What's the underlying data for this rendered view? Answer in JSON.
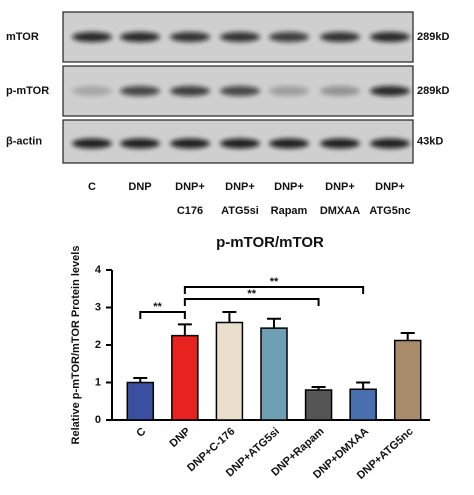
{
  "blot": {
    "rows": [
      "mTOR",
      "p-mTOR",
      "β-actin"
    ],
    "sizes": [
      "289kD",
      "289kD",
      "43kD"
    ],
    "lanes": [
      [
        "C"
      ],
      [
        "DNP"
      ],
      [
        "DNP+",
        "C176"
      ],
      [
        "DNP+",
        "ATG5si"
      ],
      [
        "DNP+",
        "Rapam"
      ],
      [
        "DNP+",
        "DMXAA"
      ],
      [
        "DNP+",
        "ATG5nc"
      ]
    ]
  },
  "chart_data": {
    "type": "bar",
    "title": "p-mTOR/mTOR",
    "y_label": "Relative p-mTOR/mTOR Protein levels",
    "categories": [
      "C",
      "DNP",
      "DNP+C-176",
      "DNP+ATG5si",
      "DNP+Rapam",
      "DNP+DMXAA",
      "DNP+ATG5nc"
    ],
    "values": [
      1.0,
      2.25,
      2.6,
      2.45,
      0.8,
      0.82,
      2.12
    ],
    "errors": [
      0.12,
      0.3,
      0.28,
      0.25,
      0.08,
      0.18,
      0.2
    ],
    "colors": [
      "#3a4fa0",
      "#e8231f",
      "#e9dfcc",
      "#6f9fb3",
      "#555555",
      "#4a6faf",
      "#a88b6b"
    ],
    "ylim": [
      0,
      4
    ],
    "yticks": [
      0,
      1,
      2,
      3,
      4
    ],
    "annotations": [
      "**",
      "**",
      "**"
    ]
  }
}
